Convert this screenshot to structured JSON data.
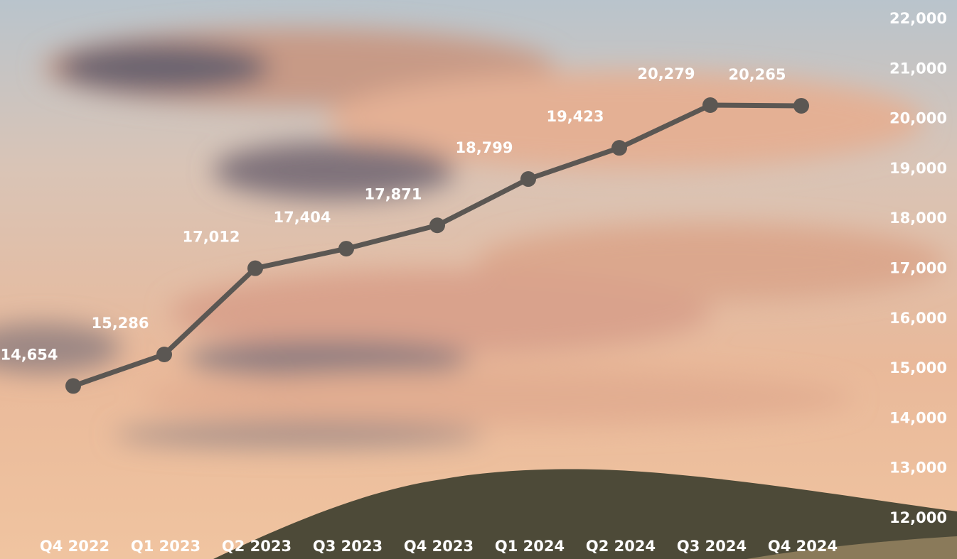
{
  "chart_data": {
    "type": "line",
    "categories": [
      "Q4 2022",
      "Q1 2023",
      "Q2 2023",
      "Q3 2023",
      "Q4 2023",
      "Q1 2024",
      "Q2 2024",
      "Q3 2024",
      "Q4 2024"
    ],
    "values": [
      14654,
      15286,
      17012,
      17404,
      17871,
      18799,
      19423,
      20279,
      20265
    ],
    "value_labels": [
      "14,654",
      "15,286",
      "17,012",
      "17,404",
      "17,871",
      "18,799",
      "19,423",
      "20,279",
      "20,265"
    ],
    "color": "#5b5753",
    "ylim": [
      12000,
      22000
    ],
    "yticks": [
      {
        "value": 12000,
        "label": "12,000"
      },
      {
        "value": 13000,
        "label": "13,000"
      },
      {
        "value": 14000,
        "label": "14,000"
      },
      {
        "value": 15000,
        "label": "15,000"
      },
      {
        "value": 16000,
        "label": "16,000"
      },
      {
        "value": 17000,
        "label": "17,000"
      },
      {
        "value": 18000,
        "label": "18,000"
      },
      {
        "value": 19000,
        "label": "19,000"
      },
      {
        "value": 20000,
        "label": "20,000"
      },
      {
        "value": 21000,
        "label": "21,000"
      },
      {
        "value": 22000,
        "label": "22,000"
      }
    ],
    "grid": false
  }
}
